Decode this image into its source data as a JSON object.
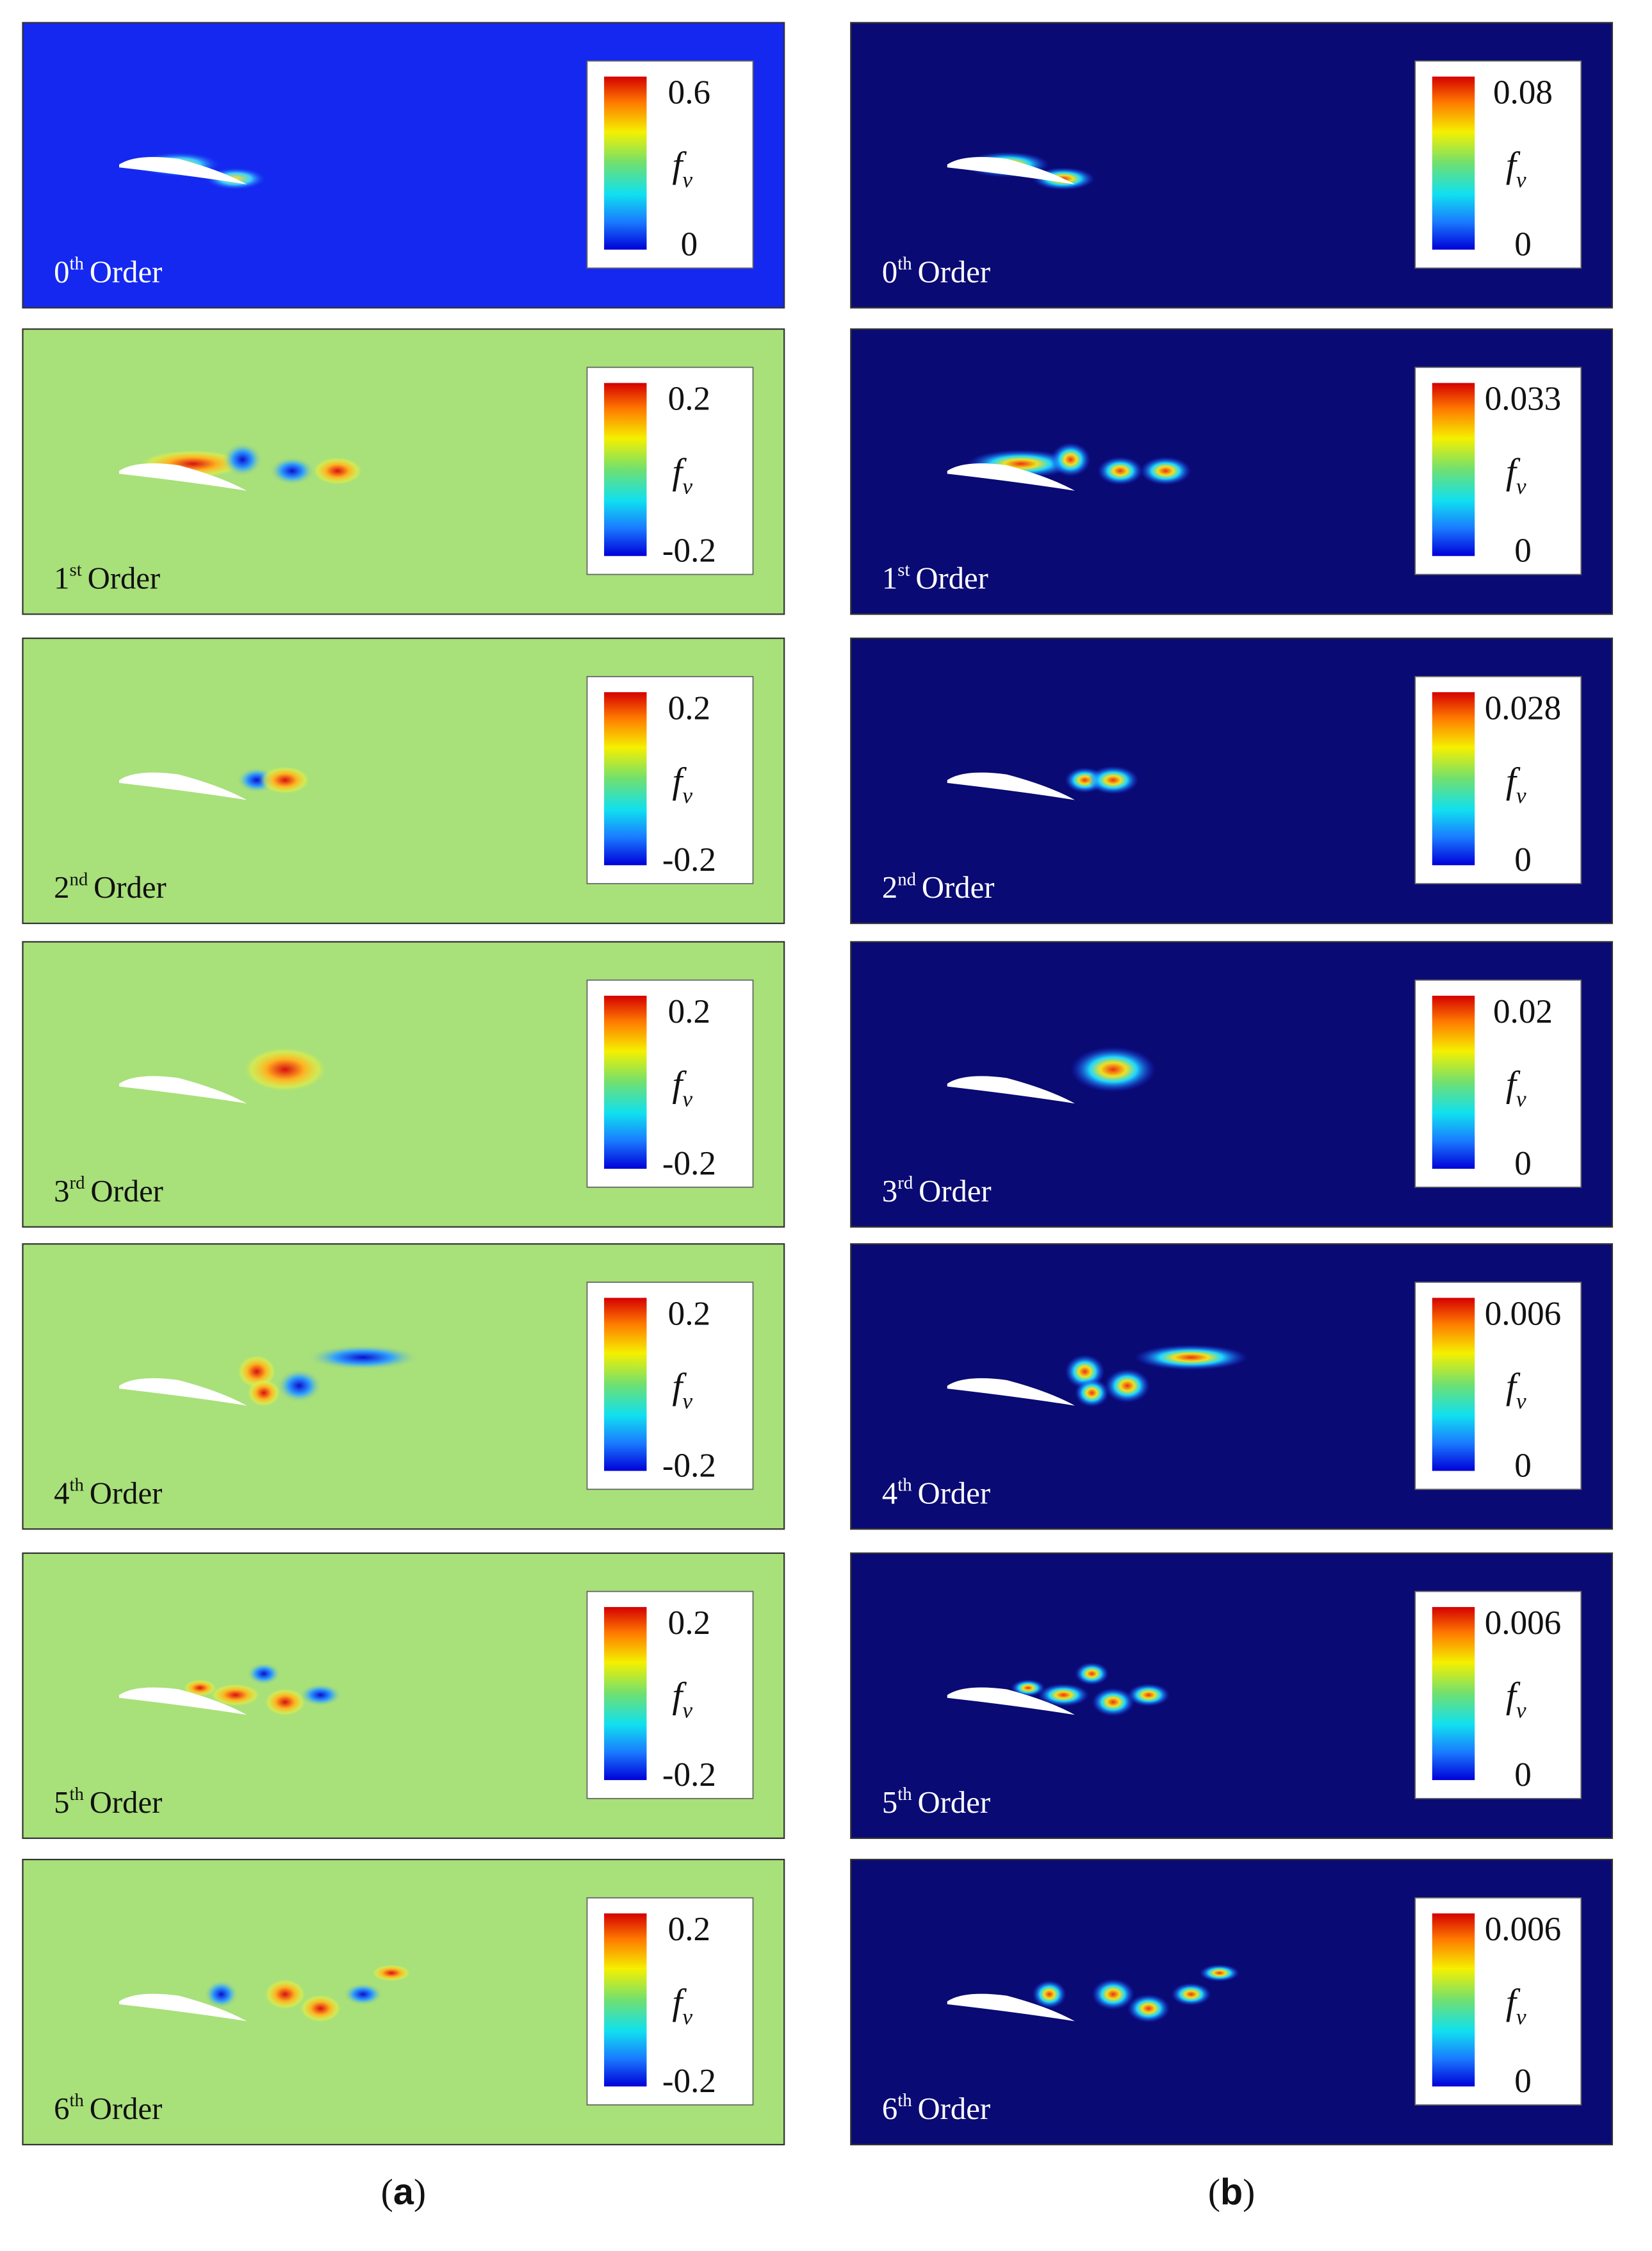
{
  "figure": {
    "columns": [
      {
        "label": {
          "open": "(",
          "letter": "a",
          "close": ")"
        },
        "panels": [
          {
            "order": {
              "number": "0",
              "suffix": "th",
              "word": "Order"
            },
            "colorbar": {
              "max": "0.6",
              "symbol": "f",
              "subscript": "v",
              "min": "0"
            }
          },
          {
            "order": {
              "number": "1",
              "suffix": "st",
              "word": "Order"
            },
            "colorbar": {
              "max": "0.2",
              "symbol": "f",
              "subscript": "v",
              "min": "-0.2"
            }
          },
          {
            "order": {
              "number": "2",
              "suffix": "nd",
              "word": "Order"
            },
            "colorbar": {
              "max": "0.2",
              "symbol": "f",
              "subscript": "v",
              "min": "-0.2"
            }
          },
          {
            "order": {
              "number": "3",
              "suffix": "rd",
              "word": "Order"
            },
            "colorbar": {
              "max": "0.2",
              "symbol": "f",
              "subscript": "v",
              "min": "-0.2"
            }
          },
          {
            "order": {
              "number": "4",
              "suffix": "th",
              "word": "Order"
            },
            "colorbar": {
              "max": "0.2",
              "symbol": "f",
              "subscript": "v",
              "min": "-0.2"
            }
          },
          {
            "order": {
              "number": "5",
              "suffix": "th",
              "word": "Order"
            },
            "colorbar": {
              "max": "0.2",
              "symbol": "f",
              "subscript": "v",
              "min": "-0.2"
            }
          },
          {
            "order": {
              "number": "6",
              "suffix": "th",
              "word": "Order"
            },
            "colorbar": {
              "max": "0.2",
              "symbol": "f",
              "subscript": "v",
              "min": "-0.2"
            }
          }
        ]
      },
      {
        "label": {
          "open": "(",
          "letter": "b",
          "close": ")"
        },
        "panels": [
          {
            "order": {
              "number": "0",
              "suffix": "th",
              "word": "Order"
            },
            "colorbar": {
              "max": "0.08",
              "symbol": "f",
              "subscript": "v",
              "min": "0"
            }
          },
          {
            "order": {
              "number": "1",
              "suffix": "st",
              "word": "Order"
            },
            "colorbar": {
              "max": "0.033",
              "symbol": "f",
              "subscript": "v",
              "min": "0"
            }
          },
          {
            "order": {
              "number": "2",
              "suffix": "nd",
              "word": "Order"
            },
            "colorbar": {
              "max": "0.028",
              "symbol": "f",
              "subscript": "v",
              "min": "0"
            }
          },
          {
            "order": {
              "number": "3",
              "suffix": "rd",
              "word": "Order"
            },
            "colorbar": {
              "max": "0.02",
              "symbol": "f",
              "subscript": "v",
              "min": "0"
            }
          },
          {
            "order": {
              "number": "4",
              "suffix": "th",
              "word": "Order"
            },
            "colorbar": {
              "max": "0.006",
              "symbol": "f",
              "subscript": "v",
              "min": "0"
            }
          },
          {
            "order": {
              "number": "5",
              "suffix": "th",
              "word": "Order"
            },
            "colorbar": {
              "max": "0.006",
              "symbol": "f",
              "subscript": "v",
              "min": "0"
            }
          },
          {
            "order": {
              "number": "6",
              "suffix": "th",
              "word": "Order"
            },
            "colorbar": {
              "max": "0.006",
              "symbol": "f",
              "subscript": "v",
              "min": "0"
            }
          }
        ]
      }
    ]
  }
}
